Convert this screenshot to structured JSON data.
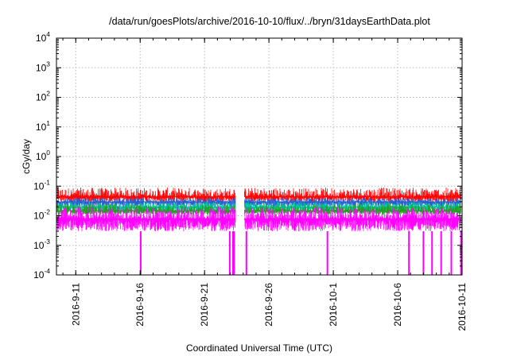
{
  "chart_data": {
    "type": "line",
    "title": "/data/run/goesPlots/archive/2016-10-10/flux/../bryn/31daysEarthData.plot",
    "xlabel": "Coordinated Universal Time (UTC)",
    "ylabel": "cGy/day",
    "yscale": "log",
    "ylim": [
      0.0001,
      10000
    ],
    "xlim": [
      "2016-09-09T12:00",
      "2016-10-11T00:00"
    ],
    "grid": true,
    "legend": "none",
    "y_ticks": [
      {
        "value": 0.0001,
        "base": "10",
        "exp": "-4"
      },
      {
        "value": 0.001,
        "base": "10",
        "exp": "-3"
      },
      {
        "value": 0.01,
        "base": "10",
        "exp": "-2"
      },
      {
        "value": 0.1,
        "base": "10",
        "exp": "-1"
      },
      {
        "value": 1,
        "base": "10",
        "exp": "0"
      },
      {
        "value": 10,
        "base": "10",
        "exp": "1"
      },
      {
        "value": 100,
        "base": "10",
        "exp": "2"
      },
      {
        "value": 1000,
        "base": "10",
        "exp": "3"
      },
      {
        "value": 10000,
        "base": "10",
        "exp": "4"
      }
    ],
    "x_ticks": [
      {
        "date": "2016-09-11",
        "label": "2016-9-11"
      },
      {
        "date": "2016-09-16",
        "label": "2016-9-16"
      },
      {
        "date": "2016-09-21",
        "label": "2016-9-21"
      },
      {
        "date": "2016-09-26",
        "label": "2016-9-26"
      },
      {
        "date": "2016-10-01",
        "label": "2016-10-1"
      },
      {
        "date": "2016-10-06",
        "label": "2016-10-6"
      },
      {
        "date": "2016-10-11",
        "label": "2016-10-11"
      }
    ],
    "data_gaps": [
      {
        "start": "2016-09-23T10:00",
        "end": "2016-09-24T02:00"
      }
    ],
    "series": [
      {
        "color": "#ff0000",
        "typical_value": 0.045,
        "peak_value": 0.09,
        "min_value": 0.03
      },
      {
        "color": "#2a5ccf",
        "typical_value": 0.03,
        "peak_value": 0.04,
        "min_value": 0.02
      },
      {
        "color": "#00c0a0",
        "typical_value": 0.02,
        "peak_value": 0.03,
        "min_value": 0.014
      },
      {
        "color": "#1fa01f",
        "typical_value": 0.015,
        "peak_value": 0.025,
        "min_value": 0.011
      },
      {
        "color": "#ff00ff",
        "typical_value": 0.008,
        "peak_value": 0.02,
        "min_value": 0.003
      }
    ],
    "dropouts": [
      {
        "date": "2016-09-16T01:00",
        "value": 0.0001
      },
      {
        "date": "2016-09-22T23:00",
        "value": 0.0001
      },
      {
        "date": "2016-09-23T05:00",
        "value": 0.0001
      },
      {
        "date": "2016-09-23T07:00",
        "value": 0.0001
      },
      {
        "date": "2016-09-24T06:00",
        "value": 0.0001
      },
      {
        "date": "2016-09-30T13:00",
        "value": 0.0001
      },
      {
        "date": "2016-10-06T21:00",
        "value": 0.0001
      },
      {
        "date": "2016-10-08T00:00",
        "value": 0.0001
      },
      {
        "date": "2016-10-08T16:00",
        "value": 0.0001
      },
      {
        "date": "2016-10-09T09:00",
        "value": 0.0001
      },
      {
        "date": "2016-10-10T04:00",
        "value": 0.0001
      },
      {
        "date": "2016-10-10T22:00",
        "value": 0.0001
      }
    ]
  }
}
